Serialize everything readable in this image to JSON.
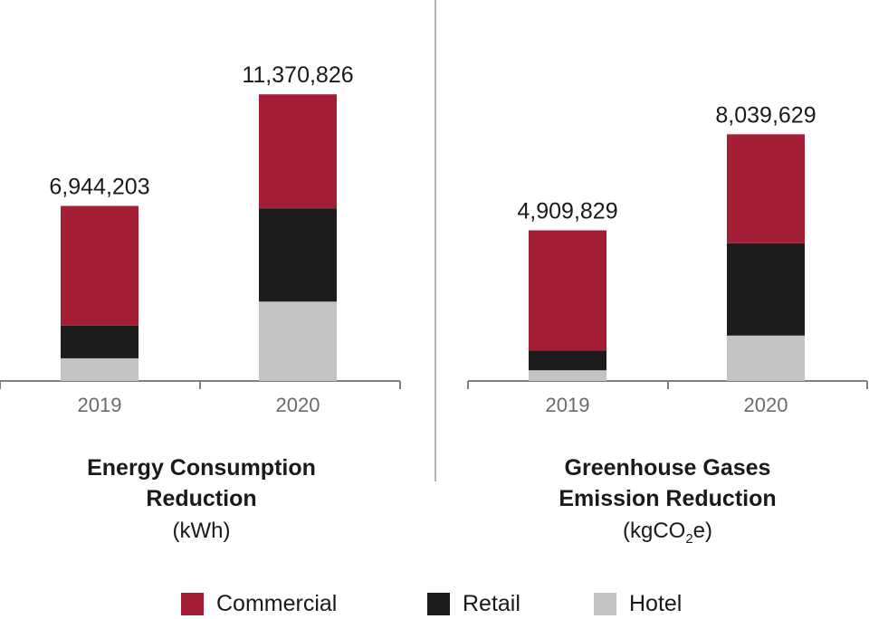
{
  "colors": {
    "Commercial": "#a41f35",
    "Retail": "#1c1c1c",
    "Hotel": "#c3c3c3",
    "axis": "#7f7f7f",
    "divider": "#b3b3b3",
    "ticklabel": "#6b6b6b"
  },
  "legend": {
    "commercial": "Commercial",
    "retail": "Retail",
    "hotel": "Hotel"
  },
  "panels": {
    "energy": {
      "title_line1": "Energy Consumption",
      "title_line2": "Reduction",
      "unit": "(kWh)"
    },
    "ghg": {
      "title_line1": "Greenhouse Gases",
      "title_line2": "Emission Reduction",
      "unit_prefix": "(kgCO",
      "unit_sub": "2",
      "unit_suffix": "e)"
    }
  },
  "chart_data": [
    {
      "type": "bar",
      "stacked": true,
      "title": "Energy Consumption Reduction",
      "unit": "kWh",
      "categories": [
        "2019",
        "2020"
      ],
      "series": [
        {
          "name": "Hotel",
          "values": [
            900000,
            3150000
          ]
        },
        {
          "name": "Retail",
          "values": [
            1300000,
            3700000
          ]
        },
        {
          "name": "Commercial",
          "values": [
            4744203,
            4520826
          ]
        }
      ],
      "totals": [
        "6,944,203",
        "11,370,826"
      ],
      "ylim": [
        0,
        12600000
      ],
      "grid": false,
      "legend": "bottom"
    },
    {
      "type": "bar",
      "stacked": true,
      "title": "Greenhouse Gases Emission Reduction",
      "unit": "kgCO2e",
      "categories": [
        "2019",
        "2020"
      ],
      "series": [
        {
          "name": "Hotel",
          "values": [
            350000,
            1480000
          ]
        },
        {
          "name": "Retail",
          "values": [
            640000,
            3010000
          ]
        },
        {
          "name": "Commercial",
          "values": [
            3919829,
            3549629
          ]
        }
      ],
      "totals": [
        "4,909,829",
        "8,039,629"
      ],
      "ylim": [
        0,
        10350000
      ],
      "grid": false,
      "legend": "bottom"
    }
  ]
}
